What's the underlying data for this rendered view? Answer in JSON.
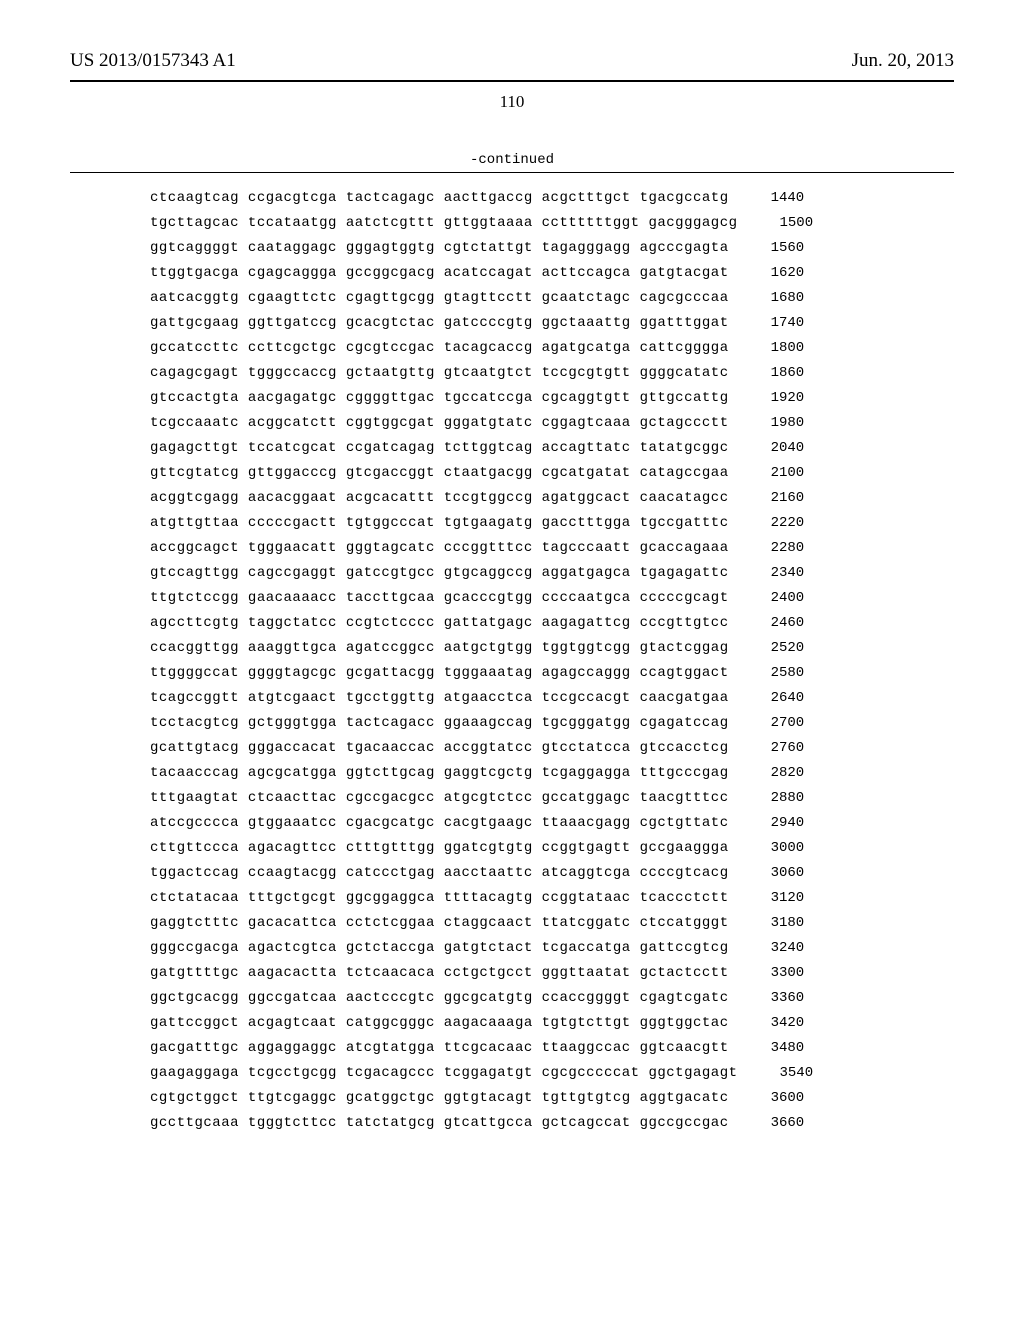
{
  "header": {
    "patent_number": "US 2013/0157343 A1",
    "date": "Jun. 20, 2013"
  },
  "page_number": "110",
  "continued_label": "-continued",
  "sequences": [
    {
      "text": "ctcaagtcag ccgacgtcga tactcagagc aacttgaccg acgctttgct tgacgccatg",
      "number": "1440"
    },
    {
      "text": "tgcttagcac tccataatgg aatctcgttt gttggtaaaa ccttttttggt gacgggagcg",
      "number": "1500"
    },
    {
      "text": "ggtcaggggt caataggagc gggagtggtg cgtctattgt tagagggagg agcccgagta",
      "number": "1560"
    },
    {
      "text": "ttggtgacga cgagcaggga gccggcgacg acatccagat acttccagca gatgtacgat",
      "number": "1620"
    },
    {
      "text": "aatcacggtg cgaagttctc cgagttgcgg gtagttcctt gcaatctagc cagcgcccaa",
      "number": "1680"
    },
    {
      "text": "gattgcgaag ggttgatccg gcacgtctac gatccccgtg ggctaaattg ggatttggat",
      "number": "1740"
    },
    {
      "text": "gccatccttc ccttcgctgc cgcgtccgac tacagcaccg agatgcatga cattcgggga",
      "number": "1800"
    },
    {
      "text": "cagagcgagt tgggccaccg gctaatgttg gtcaatgtct tccgcgtgtt ggggcatatc",
      "number": "1860"
    },
    {
      "text": "gtccactgta aacgagatgc cggggttgac tgccatccga cgcaggtgtt gttgccattg",
      "number": "1920"
    },
    {
      "text": "tcgccaaatc acggcatctt cggtggcgat gggatgtatc cggagtcaaa gctagccctt",
      "number": "1980"
    },
    {
      "text": "gagagcttgt tccatcgcat ccgatcagag tcttggtcag accagttatc tatatgcggc",
      "number": "2040"
    },
    {
      "text": "gttcgtatcg gttggacccg gtcgaccggt ctaatgacgg cgcatgatat catagccgaa",
      "number": "2100"
    },
    {
      "text": "acggtcgagg aacacggaat acgcacattt tccgtggccg agatggcact caacatagcc",
      "number": "2160"
    },
    {
      "text": "atgttgttaa cccccgactt tgtggcccat tgtgaagatg gacctttgga tgccgatttc",
      "number": "2220"
    },
    {
      "text": "accggcagct tgggaacatt gggtagcatc cccggtttcc tagcccaatt gcaccagaaa",
      "number": "2280"
    },
    {
      "text": "gtccagttgg cagccgaggt gatccgtgcc gtgcaggccg aggatgagca tgagagattc",
      "number": "2340"
    },
    {
      "text": "ttgtctccgg gaacaaaacc taccttgcaa gcacccgtgg ccccaatgca cccccgcagt",
      "number": "2400"
    },
    {
      "text": "agccttcgtg taggctatcc ccgtctcccc gattatgagc aagagattcg cccgttgtcc",
      "number": "2460"
    },
    {
      "text": "ccacggttgg aaaggttgca agatccggcc aatgctgtgg tggtggtcgg gtactcggag",
      "number": "2520"
    },
    {
      "text": "ttggggccat ggggtagcgc gcgattacgg tgggaaatag agagccaggg ccagtggact",
      "number": "2580"
    },
    {
      "text": "tcagccggtt atgtcgaact tgcctggttg atgaacctca tccgccacgt caacgatgaa",
      "number": "2640"
    },
    {
      "text": "tcctacgtcg gctgggtgga tactcagacc ggaaagccag tgcgggatgg cgagatccag",
      "number": "2700"
    },
    {
      "text": "gcattgtacg gggaccacat tgacaaccac accggtatcc gtcctatcca gtccacctcg",
      "number": "2760"
    },
    {
      "text": "tacaacccag agcgcatgga ggtcttgcag gaggtcgctg tcgaggagga tttgcccgag",
      "number": "2820"
    },
    {
      "text": "tttgaagtat ctcaacttac cgccgacgcc atgcgtctcc gccatggagc taacgtttcc",
      "number": "2880"
    },
    {
      "text": "atccgcccca gtggaaatcc cgacgcatgc cacgtgaagc ttaaacgagg cgctgttatc",
      "number": "2940"
    },
    {
      "text": "cttgttccca agacagttcc ctttgtttgg ggatcgtgtg ccggtgagtt gccgaaggga",
      "number": "3000"
    },
    {
      "text": "tggactccag ccaagtacgg catccctgag aacctaattc atcaggtcga ccccgtcacg",
      "number": "3060"
    },
    {
      "text": "ctctatacaa tttgctgcgt ggcggaggca ttttacagtg ccggtataac tcaccctctt",
      "number": "3120"
    },
    {
      "text": "gaggtctttc gacacattca cctctcggaa ctaggcaact ttatcggatc ctccatgggt",
      "number": "3180"
    },
    {
      "text": "gggccgacga agactcgtca gctctaccga gatgtctact tcgaccatga gattccgtcg",
      "number": "3240"
    },
    {
      "text": "gatgttttgc aagacactta tctcaacaca cctgctgcct gggttaatat gctactcctt",
      "number": "3300"
    },
    {
      "text": "ggctgcacgg ggccgatcaa aactcccgtc ggcgcatgtg ccaccggggt cgagtcgatc",
      "number": "3360"
    },
    {
      "text": "gattccggct acgagtcaat catggcgggc aagacaaaga tgtgtcttgt gggtggctac",
      "number": "3420"
    },
    {
      "text": "gacgatttgc aggaggaggc atcgtatgga ttcgcacaac ttaaggccac ggtcaacgtt",
      "number": "3480"
    },
    {
      "text": "gaagaggaga tcgcctgcgg tcgacagccc tcggagatgt cgcgcccccat ggctgagagt",
      "number": "3540"
    },
    {
      "text": "cgtgctggct ttgtcgaggc gcatggctgc ggtgtacagt tgttgtgtcg aggtgacatc",
      "number": "3600"
    },
    {
      "text": "gccttgcaaa tgggtcttcc tatctatgcg gtcattgcca gctcagccat ggccgccgac",
      "number": "3660"
    }
  ]
}
